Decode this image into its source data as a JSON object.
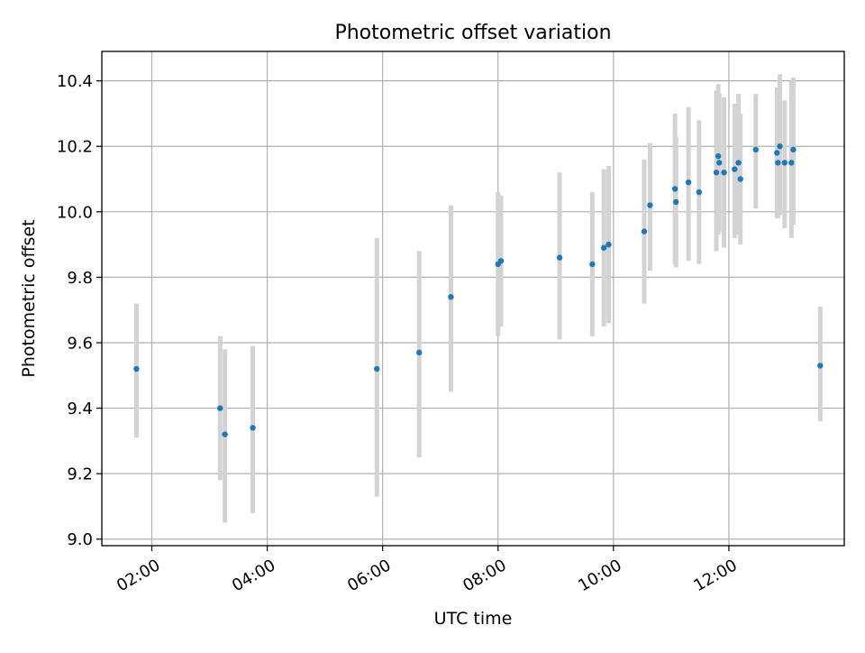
{
  "chart_data": {
    "type": "scatter",
    "title": "Photometric offset variation",
    "xlabel": "UTC time",
    "ylabel": "Photometric offset",
    "x_axis_kind": "time",
    "xlim": [
      "01:08",
      "14:00"
    ],
    "ylim": [
      8.98,
      10.49
    ],
    "x_ticks": [
      "02:00",
      "04:00",
      "06:00",
      "08:00",
      "10:00",
      "12:00"
    ],
    "y_ticks": [
      "9.0",
      "9.2",
      "9.4",
      "9.6",
      "9.8",
      "10.0",
      "10.2",
      "10.4"
    ],
    "grid": true,
    "legend": "none",
    "colors": {
      "point": "#1f77b4",
      "errorbar": "#d3d3d3",
      "grid": "#b0b0b0"
    },
    "points": [
      {
        "x": "01:44",
        "y": 9.52,
        "err_low": 9.31,
        "err_high": 9.72
      },
      {
        "x": "03:11",
        "y": 9.4,
        "err_low": 9.18,
        "err_high": 9.62
      },
      {
        "x": "03:16",
        "y": 9.32,
        "err_low": 9.05,
        "err_high": 9.58
      },
      {
        "x": "03:45",
        "y": 9.34,
        "err_low": 9.08,
        "err_high": 9.59
      },
      {
        "x": "05:54",
        "y": 9.52,
        "err_low": 9.13,
        "err_high": 9.92
      },
      {
        "x": "06:38",
        "y": 9.57,
        "err_low": 9.25,
        "err_high": 9.88
      },
      {
        "x": "07:11",
        "y": 9.74,
        "err_low": 9.45,
        "err_high": 10.02
      },
      {
        "x": "08:00",
        "y": 9.84,
        "err_low": 9.62,
        "err_high": 10.06
      },
      {
        "x": "08:03",
        "y": 9.85,
        "err_low": 9.65,
        "err_high": 10.05
      },
      {
        "x": "09:04",
        "y": 9.86,
        "err_low": 9.61,
        "err_high": 10.12
      },
      {
        "x": "09:38",
        "y": 9.84,
        "err_low": 9.62,
        "err_high": 10.06
      },
      {
        "x": "09:50",
        "y": 9.89,
        "err_low": 9.65,
        "err_high": 10.13
      },
      {
        "x": "09:55",
        "y": 9.9,
        "err_low": 9.66,
        "err_high": 10.14
      },
      {
        "x": "10:32",
        "y": 9.94,
        "err_low": 9.72,
        "err_high": 10.16
      },
      {
        "x": "10:38",
        "y": 10.02,
        "err_low": 9.82,
        "err_high": 10.21
      },
      {
        "x": "11:04",
        "y": 10.07,
        "err_low": 9.84,
        "err_high": 10.3
      },
      {
        "x": "11:05",
        "y": 10.03,
        "err_low": 9.83,
        "err_high": 10.23
      },
      {
        "x": "11:18",
        "y": 10.09,
        "err_low": 9.85,
        "err_high": 10.32
      },
      {
        "x": "11:29",
        "y": 10.06,
        "err_low": 9.84,
        "err_high": 10.28
      },
      {
        "x": "11:47",
        "y": 10.12,
        "err_low": 9.88,
        "err_high": 10.37
      },
      {
        "x": "11:49",
        "y": 10.17,
        "err_low": 9.93,
        "err_high": 10.39
      },
      {
        "x": "11:50",
        "y": 10.15,
        "err_low": 9.94,
        "err_high": 10.36
      },
      {
        "x": "11:55",
        "y": 10.12,
        "err_low": 9.89,
        "err_high": 10.35
      },
      {
        "x": "12:06",
        "y": 10.13,
        "err_low": 9.92,
        "err_high": 10.33
      },
      {
        "x": "12:10",
        "y": 10.15,
        "err_low": 9.93,
        "err_high": 10.36
      },
      {
        "x": "12:12",
        "y": 10.1,
        "err_low": 9.9,
        "err_high": 10.3
      },
      {
        "x": "12:28",
        "y": 10.19,
        "err_low": 10.01,
        "err_high": 10.36
      },
      {
        "x": "12:50",
        "y": 10.18,
        "err_low": 9.98,
        "err_high": 10.38
      },
      {
        "x": "12:51",
        "y": 10.15,
        "err_low": 9.98,
        "err_high": 10.33
      },
      {
        "x": "12:53",
        "y": 10.2,
        "err_low": 9.99,
        "err_high": 10.42
      },
      {
        "x": "12:58",
        "y": 10.15,
        "err_low": 9.95,
        "err_high": 10.34
      },
      {
        "x": "13:05",
        "y": 10.15,
        "err_low": 9.92,
        "err_high": 10.4
      },
      {
        "x": "13:07",
        "y": 10.19,
        "err_low": 9.96,
        "err_high": 10.41
      },
      {
        "x": "13:35",
        "y": 9.53,
        "err_low": 9.36,
        "err_high": 9.71
      }
    ]
  }
}
